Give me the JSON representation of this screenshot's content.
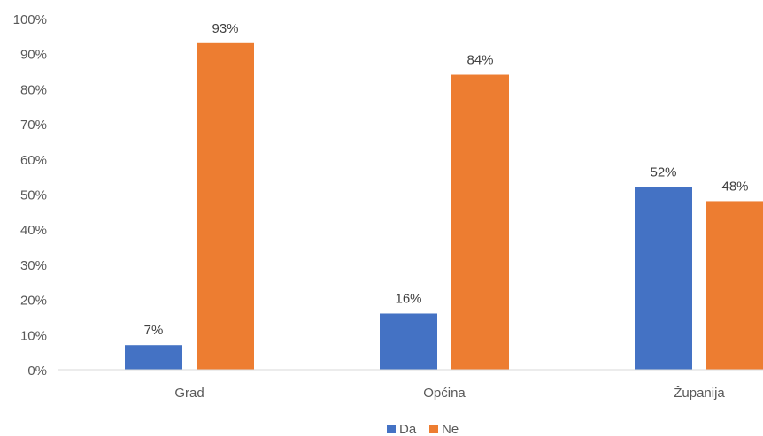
{
  "chart_data": {
    "type": "bar",
    "categories": [
      "Grad",
      "Općina",
      "Županija"
    ],
    "series": [
      {
        "name": "Da",
        "color": "#4472C4",
        "values": [
          7,
          16,
          52
        ],
        "labels": [
          "7%",
          "16%",
          "52%"
        ]
      },
      {
        "name": "Ne",
        "color": "#ED7D31",
        "values": [
          93,
          84,
          48
        ],
        "labels": [
          "93%",
          "84%",
          "48%"
        ]
      }
    ],
    "ylim": [
      0,
      100
    ],
    "y_ticks": [
      "0%",
      "10%",
      "20%",
      "30%",
      "40%",
      "50%",
      "60%",
      "70%",
      "80%",
      "90%",
      "100%"
    ],
    "grid": false,
    "legend_position": "bottom",
    "title": "",
    "xlabel": "",
    "ylabel": ""
  }
}
